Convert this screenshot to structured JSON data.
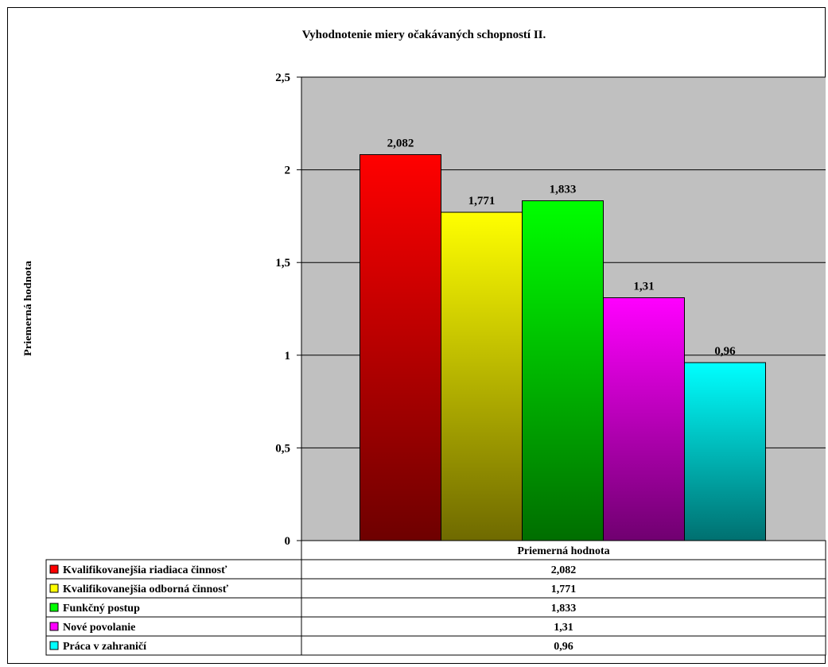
{
  "chart_data": {
    "type": "bar",
    "title": "Vyhodnotenie miery očakávaných schopností II.",
    "ylabel": "Priemerná hodnota",
    "xlabel": "",
    "category": "Priemerná hodnota",
    "ylim": [
      0,
      2.5
    ],
    "yticks": [
      "0",
      "0,5",
      "1",
      "1,5",
      "2",
      "2,5"
    ],
    "ytick_values": [
      0,
      0.5,
      1,
      1.5,
      2,
      2.5
    ],
    "grid": true,
    "legend": "data-table",
    "series": [
      {
        "name": "Kvalifikovanejšia riadiaca činnosť",
        "value": 2.082,
        "label": "2,082",
        "color_top": "#ff0000",
        "color_bottom": "#6e0000"
      },
      {
        "name": "Kvalifikovanejšia odborná činnosť",
        "value": 1.771,
        "label": "1,771",
        "color_top": "#ffff00",
        "color_bottom": "#6f6a00"
      },
      {
        "name": "Funkčný postup",
        "value": 1.833,
        "label": "1,833",
        "color_top": "#00ff00",
        "color_bottom": "#006e00"
      },
      {
        "name": "Nové povolanie",
        "value": 1.31,
        "label": "1,31",
        "color_top": "#ff00ff",
        "color_bottom": "#700070"
      },
      {
        "name": "Práca v zahraničí",
        "value": 0.96,
        "label": "0,96",
        "color_top": "#00ffff",
        "color_bottom": "#007070"
      }
    ],
    "colors": {
      "plot_background": "#c0c0c0",
      "gridline": "#000000"
    }
  }
}
